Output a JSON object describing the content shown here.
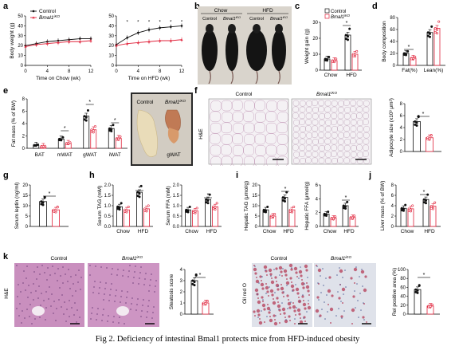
{
  "caption": "Fig 2. Deficiency of intestinal Bmal1 protects mice from HFD-induced obesity",
  "colors": {
    "control": "#111111",
    "ko": "#e0223a",
    "he_pink": "#c97fb0",
    "oil_red": "#b43b55"
  },
  "legend": {
    "control": "Control",
    "ko": "Bmal1",
    "ko_sup": "iKO"
  },
  "panels": {
    "a": {
      "letter": "a",
      "ylabel": "Body weight (g)",
      "left_xlabel": "Time on Chow (wk)",
      "right_xlabel": "Time on HFD (wk)",
      "yticks": [
        "0",
        "10",
        "20",
        "30",
        "40",
        "50"
      ],
      "left_xticks": [
        "0",
        "4",
        "8",
        "12"
      ],
      "right_xticks": [
        "0",
        "4",
        "8",
        "12"
      ]
    },
    "b": {
      "letter": "b",
      "groups": [
        "Chow",
        "HFD"
      ],
      "sublabels": [
        "Control",
        "Bmal1iKO",
        "Control",
        "Bmal1iKO"
      ]
    },
    "c": {
      "letter": "c",
      "ylabel": "Weight gain (g)",
      "yticks": [
        "0",
        "10",
        "20",
        "30"
      ],
      "categories": [
        "Chow",
        "HFD"
      ],
      "legend_control": "Control",
      "legend_ko": "Bmal1"
    },
    "d": {
      "letter": "d",
      "ylabel": "Body composition",
      "yticks": [
        "0",
        "20",
        "40",
        "60",
        "80"
      ],
      "categories": [
        "Fat(%)",
        "Lean(%)"
      ]
    },
    "e": {
      "letter": "e",
      "ylabel": "Fat mass (% of BW)",
      "yticks": [
        "0",
        "2",
        "4",
        "6",
        "8"
      ],
      "categories": [
        "BAT",
        "mWAT",
        "gWAT",
        "iWAT"
      ],
      "photo_control": "Control",
      "photo_ko": "Bmal1",
      "photo_label": "gWAT"
    },
    "f": {
      "letter": "f",
      "stain": "H&E",
      "control": "Control",
      "ko": "Bmal1",
      "ylabel": "Adipocyte size (x10³ μm²)",
      "yticks": [
        "0",
        "2",
        "4",
        "6",
        "8"
      ]
    },
    "g": {
      "letter": "g",
      "ylabel": "Serum leptin (ng/ml)",
      "yticks": [
        "0",
        "5",
        "10",
        "15",
        "20"
      ]
    },
    "h": {
      "letter": "h",
      "ylabel1": "Serum TAG (mM)",
      "yticks1": [
        "0.0",
        "0.5",
        "1.0",
        "1.5",
        "2.0"
      ],
      "ylabel2": "Serum FFA (mM)",
      "yticks2": [
        "0.0",
        "0.5",
        "1.0",
        "1.5",
        "2.0"
      ],
      "categories": [
        "Chow",
        "HFD"
      ]
    },
    "i": {
      "letter": "i",
      "ylabel1": "Hepatic TAG (μmol/g)",
      "yticks1": [
        "0",
        "5",
        "10",
        "15",
        "20"
      ],
      "ylabel2": "Hepatic FFA (μmol/g)",
      "yticks2": [
        "0",
        "2",
        "4",
        "6"
      ],
      "categories": [
        "Chow",
        "HFD"
      ]
    },
    "j": {
      "letter": "j",
      "ylabel": "Liver mass (% of BW)",
      "yticks": [
        "0",
        "2",
        "4",
        "6",
        "8"
      ],
      "categories": [
        "Chow",
        "HFD"
      ]
    },
    "k": {
      "letter": "k",
      "stain": "H&E",
      "control": "Control",
      "ko": "Bmal1",
      "score_label": "Steatosis score",
      "score_yticks": [
        "0",
        "1",
        "2",
        "3",
        "4"
      ],
      "oil_label": "Oil red O",
      "area_label": "Rel positive area (%)",
      "area_yticks": [
        "0",
        "20",
        "40",
        "60",
        "80",
        "100"
      ]
    }
  },
  "chart_data": [
    {
      "type": "line",
      "panel": "a-left",
      "x": [
        0,
        2,
        4,
        6,
        8,
        10,
        12
      ],
      "series": [
        {
          "name": "Control",
          "values": [
            20,
            22,
            24,
            25,
            26,
            27,
            27
          ]
        },
        {
          "name": "Bmal1iKO",
          "values": [
            19,
            21,
            22,
            23,
            24,
            24,
            25
          ]
        }
      ],
      "ylim": [
        0,
        50
      ]
    },
    {
      "type": "line",
      "panel": "a-right",
      "x": [
        0,
        2,
        4,
        6,
        8,
        10,
        12
      ],
      "series": [
        {
          "name": "Control",
          "values": [
            21,
            28,
            33,
            36,
            38,
            39,
            40
          ]
        },
        {
          "name": "Bmal1iKO",
          "values": [
            20,
            22,
            23,
            24,
            25,
            25,
            26
          ]
        }
      ],
      "ylim": [
        0,
        50
      ]
    },
    {
      "type": "bar",
      "panel": "c",
      "categories": [
        "Chow",
        "HFD"
      ],
      "series": [
        {
          "name": "Control",
          "values": [
            7,
            22
          ]
        },
        {
          "name": "Bmal1iKO",
          "values": [
            6,
            10
          ]
        }
      ],
      "ylim": [
        0,
        30
      ]
    },
    {
      "type": "bar",
      "panel": "d",
      "categories": [
        "Fat(%)",
        "Lean(%)"
      ],
      "series": [
        {
          "name": "Control",
          "values": [
            20,
            55
          ]
        },
        {
          "name": "Bmal1iKO",
          "values": [
            12,
            62
          ]
        }
      ],
      "ylim": [
        0,
        80
      ]
    },
    {
      "type": "bar",
      "panel": "e",
      "categories": [
        "BAT",
        "mWAT",
        "gWAT",
        "iWAT"
      ],
      "series": [
        {
          "name": "Control",
          "values": [
            0.5,
            1.5,
            5.2,
            3.2
          ]
        },
        {
          "name": "Bmal1iKO",
          "values": [
            0.3,
            0.8,
            3.0,
            1.6
          ]
        }
      ],
      "ylim": [
        0,
        8
      ]
    },
    {
      "type": "bar",
      "panel": "f",
      "categories": [
        "Control",
        "Bmal1iKO"
      ],
      "series": [
        {
          "values": [
            5.0,
            2.3
          ]
        }
      ],
      "ylim": [
        0,
        8
      ]
    },
    {
      "type": "bar",
      "panel": "g",
      "categories": [
        "Control",
        "Bmal1iKO"
      ],
      "series": [
        {
          "values": [
            12,
            8
          ]
        }
      ],
      "ylim": [
        0,
        20
      ]
    },
    {
      "type": "bar",
      "panel": "h-TAG",
      "categories": [
        "Chow",
        "HFD"
      ],
      "series": [
        {
          "name": "Control",
          "values": [
            0.95,
            1.65
          ]
        },
        {
          "name": "Bmal1iKO",
          "values": [
            0.8,
            0.85
          ]
        }
      ],
      "ylim": [
        0,
        2
      ]
    },
    {
      "type": "bar",
      "panel": "h-FFA",
      "categories": [
        "Chow",
        "HFD"
      ],
      "series": [
        {
          "name": "Control",
          "values": [
            0.8,
            1.3
          ]
        },
        {
          "name": "Bmal1iKO",
          "values": [
            0.75,
            0.95
          ]
        }
      ],
      "ylim": [
        0,
        2
      ]
    },
    {
      "type": "bar",
      "panel": "i-TAG",
      "categories": [
        "Chow",
        "HFD"
      ],
      "series": [
        {
          "name": "Control",
          "values": [
            8,
            14
          ]
        },
        {
          "name": "Bmal1iKO",
          "values": [
            5,
            8
          ]
        }
      ],
      "ylim": [
        0,
        20
      ]
    },
    {
      "type": "bar",
      "panel": "i-FFA",
      "categories": [
        "Chow",
        "HFD"
      ],
      "series": [
        {
          "name": "Control",
          "values": [
            1.8,
            3.0
          ]
        },
        {
          "name": "Bmal1iKO",
          "values": [
            1.2,
            1.3
          ]
        }
      ],
      "ylim": [
        0,
        6
      ]
    },
    {
      "type": "bar",
      "panel": "j",
      "categories": [
        "Chow",
        "HFD"
      ],
      "series": [
        {
          "name": "Control",
          "values": [
            3.5,
            5.2
          ]
        },
        {
          "name": "Bmal1iKO",
          "values": [
            3.4,
            3.9
          ]
        }
      ],
      "ylim": [
        0,
        8
      ]
    },
    {
      "type": "bar",
      "panel": "k-score",
      "categories": [
        "Control",
        "Bmal1iKO"
      ],
      "series": [
        {
          "values": [
            3.0,
            1.0
          ]
        }
      ],
      "ylim": [
        0,
        4
      ]
    },
    {
      "type": "bar",
      "panel": "k-area",
      "categories": [
        "Control",
        "Bmal1iKO"
      ],
      "series": [
        {
          "values": [
            55,
            18
          ]
        }
      ],
      "ylim": [
        0,
        100
      ]
    }
  ]
}
